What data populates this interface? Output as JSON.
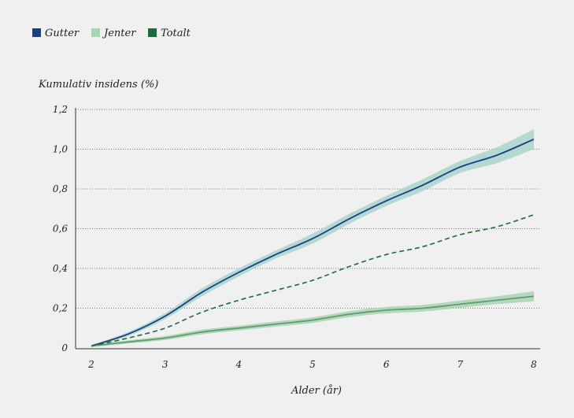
{
  "chart_data": {
    "type": "line",
    "ylabel": "Kumulativ insidens (%)",
    "xlabel": "Alder (år)",
    "xlim": [
      2,
      8
    ],
    "ylim": [
      0,
      1.2
    ],
    "x_ticks": [
      "2",
      "3",
      "4",
      "5",
      "6",
      "7",
      "8"
    ],
    "y_ticks": [
      "0",
      "0,2",
      "0,4",
      "0,6",
      "0,8",
      "1,0",
      "1,2"
    ],
    "grid": "horizontal dotted",
    "legend_position": "top-left",
    "x": [
      2.0,
      2.5,
      3.0,
      3.5,
      4.0,
      4.5,
      5.0,
      5.5,
      6.0,
      6.5,
      7.0,
      7.5,
      8.0
    ],
    "series": [
      {
        "name": "Gutter",
        "color": "#1a3f80",
        "band_color": "#a9d3cd",
        "style": "solid",
        "values": [
          0.01,
          0.07,
          0.16,
          0.28,
          0.38,
          0.47,
          0.55,
          0.65,
          0.74,
          0.82,
          0.91,
          0.97,
          1.05
        ],
        "ci_half_width": [
          0.005,
          0.01,
          0.015,
          0.02,
          0.02,
          0.02,
          0.025,
          0.025,
          0.025,
          0.03,
          0.03,
          0.04,
          0.05
        ]
      },
      {
        "name": "Jenter",
        "color": "#5e9e6e",
        "band_color": "#a8d3b4",
        "style": "solid",
        "values": [
          0.01,
          0.03,
          0.05,
          0.08,
          0.1,
          0.12,
          0.14,
          0.17,
          0.19,
          0.2,
          0.22,
          0.24,
          0.26
        ],
        "ci_half_width": [
          0.005,
          0.008,
          0.01,
          0.012,
          0.012,
          0.013,
          0.014,
          0.015,
          0.016,
          0.017,
          0.018,
          0.02,
          0.025
        ]
      },
      {
        "name": "Totalt",
        "color": "#1d6b3c",
        "style": "dashed",
        "values": [
          0.01,
          0.05,
          0.1,
          0.18,
          0.24,
          0.29,
          0.34,
          0.41,
          0.47,
          0.51,
          0.57,
          0.61,
          0.67
        ]
      }
    ]
  }
}
